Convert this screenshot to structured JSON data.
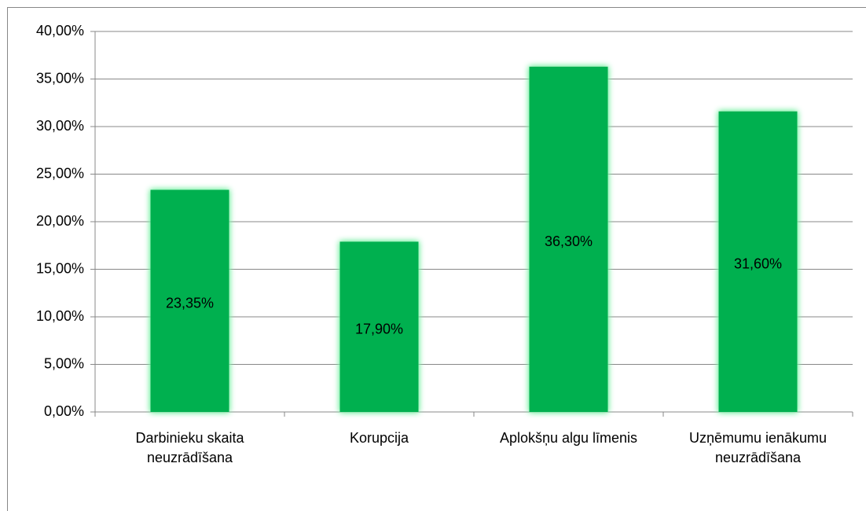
{
  "chart_data": {
    "type": "bar",
    "categories": [
      "Darbinieku skaita neuzrādīšana",
      "Korupcija",
      "Aplokšņu algu līmenis",
      "Uzņēmumu ienākumu neuzrādīšana"
    ],
    "values": [
      23.35,
      17.9,
      36.3,
      31.6
    ],
    "value_labels": [
      "23,35%",
      "17,90%",
      "36,30%",
      "31,60%"
    ],
    "color": "#00b050",
    "ylim": [
      0,
      40
    ],
    "yticks": [
      {
        "value": 0,
        "label": "0,00%"
      },
      {
        "value": 5,
        "label": "5,00%"
      },
      {
        "value": 10,
        "label": "10,00%"
      },
      {
        "value": 15,
        "label": "15,00%"
      },
      {
        "value": 20,
        "label": "20,00%"
      },
      {
        "value": 25,
        "label": "25,00%"
      },
      {
        "value": 30,
        "label": "30,00%"
      },
      {
        "value": 35,
        "label": "35,00%"
      },
      {
        "value": 40,
        "label": "40,00%"
      }
    ],
    "grid": true
  }
}
